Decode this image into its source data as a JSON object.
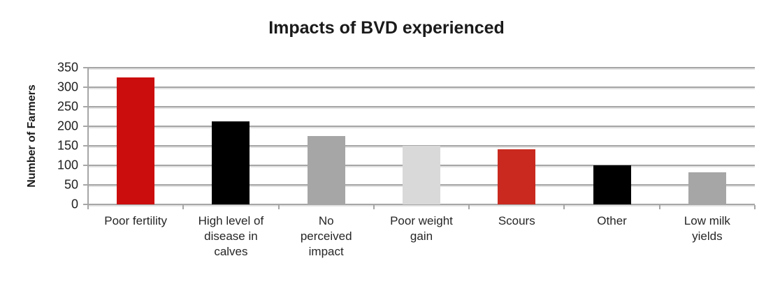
{
  "chart_data": {
    "type": "bar",
    "title": "Impacts of BVD experienced",
    "ylabel": "Number of Farmers",
    "xlabel": "",
    "categories": [
      "Poor fertility",
      "High level of disease in calves",
      "No perceived impact",
      "Poor weight gain",
      "Scours",
      "Other",
      "Low milk yields"
    ],
    "category_label_lines": [
      [
        "Poor fertility"
      ],
      [
        "High level of",
        "disease in",
        "calves"
      ],
      [
        "No",
        "perceived",
        "impact"
      ],
      [
        "Poor weight",
        "gain"
      ],
      [
        "Scours"
      ],
      [
        "Other"
      ],
      [
        "Low milk",
        "yields"
      ]
    ],
    "values": [
      325,
      213,
      175,
      150,
      141,
      100,
      83
    ],
    "bar_colors": [
      "#cc0d0d",
      "#000000",
      "#a6a6a6",
      "#d9d9d9",
      "#c9291e",
      "#000000",
      "#a6a6a6"
    ],
    "ylim": [
      0,
      350
    ],
    "yticks": [
      0,
      50,
      100,
      150,
      200,
      250,
      300,
      350
    ],
    "grid": "horizontal",
    "legend": "none",
    "colors": {
      "gridline": "#a6a6a6",
      "gridline_shadow": "#e3e3e3",
      "axis": "#a6a6a6",
      "text": "#262626",
      "title": "#1a1a1a"
    }
  }
}
